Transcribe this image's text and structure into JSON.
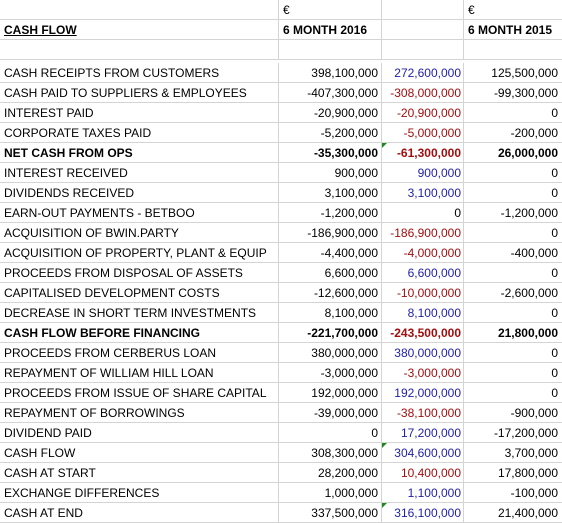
{
  "header": {
    "currency_2016": "€",
    "currency_2015": "€",
    "title": "CASH FLOW",
    "period_2016": "6 MONTH 2016",
    "period_2015": "6 MONTH 2015"
  },
  "colors": {
    "positive_blue": "#1f1fa6",
    "negative_red": "#a10e0e",
    "flag_green": "#1e8a1e"
  },
  "rows": [
    {
      "label": "CASH RECEIPTS FROM CUSTOMERS",
      "v2016": "398,100,000",
      "vmid": "272,600,000",
      "mid_color": "blue",
      "v2015": "125,500,000",
      "bold": false
    },
    {
      "label": "CASH PAID TO SUPPLIERS & EMPLOYEES",
      "v2016": "-407,300,000",
      "vmid": "-308,000,000",
      "mid_color": "red",
      "v2015": "-99,300,000",
      "bold": false
    },
    {
      "label": "INTEREST PAID",
      "v2016": "-20,900,000",
      "vmid": "-20,900,000",
      "mid_color": "red",
      "v2015": "0",
      "bold": false
    },
    {
      "label": "CORPORATE TAXES PAID",
      "v2016": "-5,200,000",
      "vmid": "-5,000,000",
      "mid_color": "red",
      "v2015": "-200,000",
      "bold": false
    },
    {
      "label": "NET CASH FROM OPS",
      "v2016": "-35,300,000",
      "vmid": "-61,300,000",
      "mid_color": "red",
      "v2015": "26,000,000",
      "bold": true,
      "flag": true
    },
    {
      "label": "INTEREST RECEIVED",
      "v2016": "900,000",
      "vmid": "900,000",
      "mid_color": "blue",
      "v2015": "0",
      "bold": false
    },
    {
      "label": "DIVIDENDS RECEIVED",
      "v2016": "3,100,000",
      "vmid": "3,100,000",
      "mid_color": "blue",
      "v2015": "0",
      "bold": false
    },
    {
      "label": "EARN-OUT PAYMENTS - BETBOO",
      "v2016": "-1,200,000",
      "vmid": "0",
      "mid_color": "black",
      "v2015": "-1,200,000",
      "bold": false
    },
    {
      "label": "ACQUISITION OF BWIN.PARTY",
      "v2016": "-186,900,000",
      "vmid": "-186,900,000",
      "mid_color": "red",
      "v2015": "0",
      "bold": false
    },
    {
      "label": "ACQUISITION OF PROPERTY, PLANT & EQUIP",
      "v2016": "-4,400,000",
      "vmid": "-4,000,000",
      "mid_color": "red",
      "v2015": "-400,000",
      "bold": false
    },
    {
      "label": "PROCEEDS FROM DISPOSAL OF ASSETS",
      "v2016": "6,600,000",
      "vmid": "6,600,000",
      "mid_color": "blue",
      "v2015": "0",
      "bold": false
    },
    {
      "label": "CAPITALISED DEVELOPMENT COSTS",
      "v2016": "-12,600,000",
      "vmid": "-10,000,000",
      "mid_color": "red",
      "v2015": "-2,600,000",
      "bold": false
    },
    {
      "label": "DECREASE IN SHORT TERM INVESTMENTS",
      "v2016": "8,100,000",
      "vmid": "8,100,000",
      "mid_color": "blue",
      "v2015": "0",
      "bold": false
    },
    {
      "label": "CASH FLOW BEFORE FINANCING",
      "v2016": "-221,700,000",
      "vmid": "-243,500,000",
      "mid_color": "red",
      "v2015": "21,800,000",
      "bold": true
    },
    {
      "label": "PROCEEDS FROM CERBERUS LOAN",
      "v2016": "380,000,000",
      "vmid": "380,000,000",
      "mid_color": "blue",
      "v2015": "0",
      "bold": false
    },
    {
      "label": "REPAYMENT OF WILLIAM HILL LOAN",
      "v2016": "-3,000,000",
      "vmid": "-3,000,000",
      "mid_color": "red",
      "v2015": "0",
      "bold": false
    },
    {
      "label": "PROCEEDS FROM ISSUE OF SHARE CAPITAL",
      "v2016": "192,000,000",
      "vmid": "192,000,000",
      "mid_color": "blue",
      "v2015": "0",
      "bold": false
    },
    {
      "label": "REPAYMENT OF BORROWINGS",
      "v2016": "-39,000,000",
      "vmid": "-38,100,000",
      "mid_color": "red",
      "v2015": "-900,000",
      "bold": false
    },
    {
      "label": "DIVIDEND PAID",
      "v2016": "0",
      "vmid": "17,200,000",
      "mid_color": "blue",
      "v2015": "-17,200,000",
      "bold": false
    },
    {
      "label": "CASH FLOW",
      "v2016": "308,300,000",
      "vmid": "304,600,000",
      "mid_color": "blue",
      "v2015": "3,700,000",
      "bold": false,
      "flag": true
    },
    {
      "label": "CASH AT START",
      "v2016": "28,200,000",
      "vmid": "10,400,000",
      "mid_color": "red",
      "v2015": "17,800,000",
      "bold": false
    },
    {
      "label": "EXCHANGE DIFFERENCES",
      "v2016": "1,000,000",
      "vmid": "1,100,000",
      "mid_color": "blue",
      "v2015": "-100,000",
      "bold": false
    },
    {
      "label": "CASH AT END",
      "v2016": "337,500,000",
      "vmid": "316,100,000",
      "mid_color": "blue",
      "v2015": "21,400,000",
      "bold": false,
      "flag": true
    }
  ]
}
